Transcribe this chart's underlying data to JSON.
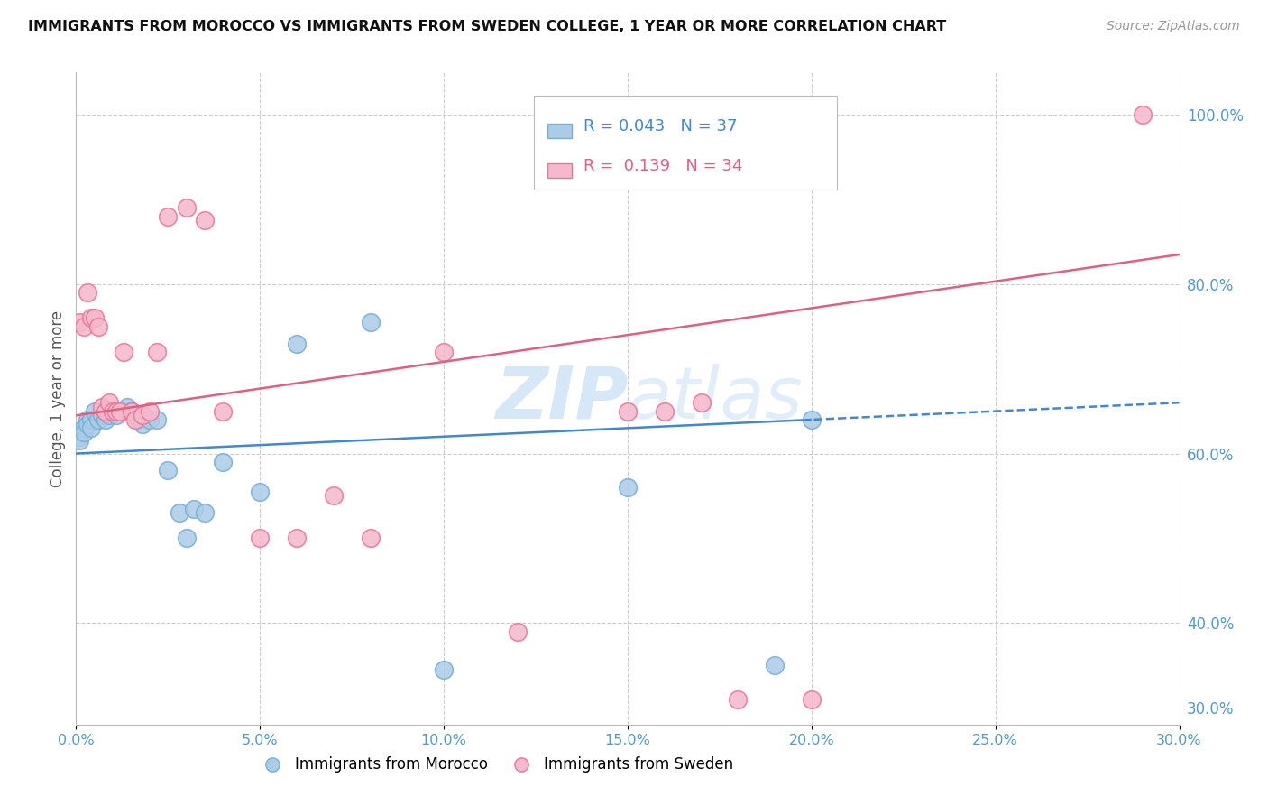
{
  "title": "IMMIGRANTS FROM MOROCCO VS IMMIGRANTS FROM SWEDEN COLLEGE, 1 YEAR OR MORE CORRELATION CHART",
  "source": "Source: ZipAtlas.com",
  "ylabel": "College, 1 year or more",
  "xlim": [
    0.0,
    0.3
  ],
  "ylim": [
    0.28,
    1.05
  ],
  "xticks": [
    0.0,
    0.05,
    0.1,
    0.15,
    0.2,
    0.25,
    0.3
  ],
  "yticks_right": [
    0.3,
    0.4,
    0.6,
    0.8,
    1.0
  ],
  "morocco_color": "#aacce8",
  "morocco_edge": "#7aaed4",
  "sweden_color": "#f5b8cc",
  "sweden_edge": "#e87898",
  "trend_morocco_color": "#4488cc",
  "trend_sweden_color": "#e06080",
  "watermark_color": "#c5ddf5",
  "legend_R_morocco": "0.043",
  "legend_N_morocco": "37",
  "legend_R_sweden": "0.139",
  "legend_N_sweden": "34",
  "morocco_solid_cutoff": 0.2,
  "morocco_x": [
    0.001,
    0.001,
    0.002,
    0.002,
    0.003,
    0.003,
    0.004,
    0.004,
    0.005,
    0.006,
    0.007,
    0.008,
    0.009,
    0.01,
    0.011,
    0.012,
    0.013,
    0.014,
    0.015,
    0.016,
    0.017,
    0.018,
    0.02,
    0.022,
    0.025,
    0.028,
    0.03,
    0.032,
    0.035,
    0.04,
    0.05,
    0.06,
    0.08,
    0.1,
    0.15,
    0.19,
    0.2
  ],
  "morocco_y": [
    0.62,
    0.615,
    0.63,
    0.625,
    0.64,
    0.635,
    0.64,
    0.63,
    0.65,
    0.64,
    0.645,
    0.64,
    0.645,
    0.65,
    0.645,
    0.65,
    0.65,
    0.655,
    0.65,
    0.645,
    0.64,
    0.635,
    0.64,
    0.64,
    0.58,
    0.53,
    0.5,
    0.535,
    0.53,
    0.59,
    0.555,
    0.73,
    0.755,
    0.345,
    0.56,
    0.35,
    0.64
  ],
  "sweden_x": [
    0.001,
    0.002,
    0.003,
    0.004,
    0.005,
    0.006,
    0.007,
    0.008,
    0.009,
    0.01,
    0.011,
    0.012,
    0.013,
    0.015,
    0.016,
    0.018,
    0.02,
    0.022,
    0.025,
    0.03,
    0.035,
    0.04,
    0.05,
    0.06,
    0.07,
    0.08,
    0.1,
    0.12,
    0.15,
    0.16,
    0.17,
    0.18,
    0.2,
    0.29
  ],
  "sweden_y": [
    0.755,
    0.75,
    0.79,
    0.76,
    0.76,
    0.75,
    0.655,
    0.65,
    0.66,
    0.65,
    0.65,
    0.65,
    0.72,
    0.65,
    0.64,
    0.645,
    0.65,
    0.72,
    0.88,
    0.89,
    0.875,
    0.65,
    0.5,
    0.5,
    0.55,
    0.5,
    0.72,
    0.39,
    0.65,
    0.65,
    0.66,
    0.31,
    0.31,
    1.0
  ]
}
